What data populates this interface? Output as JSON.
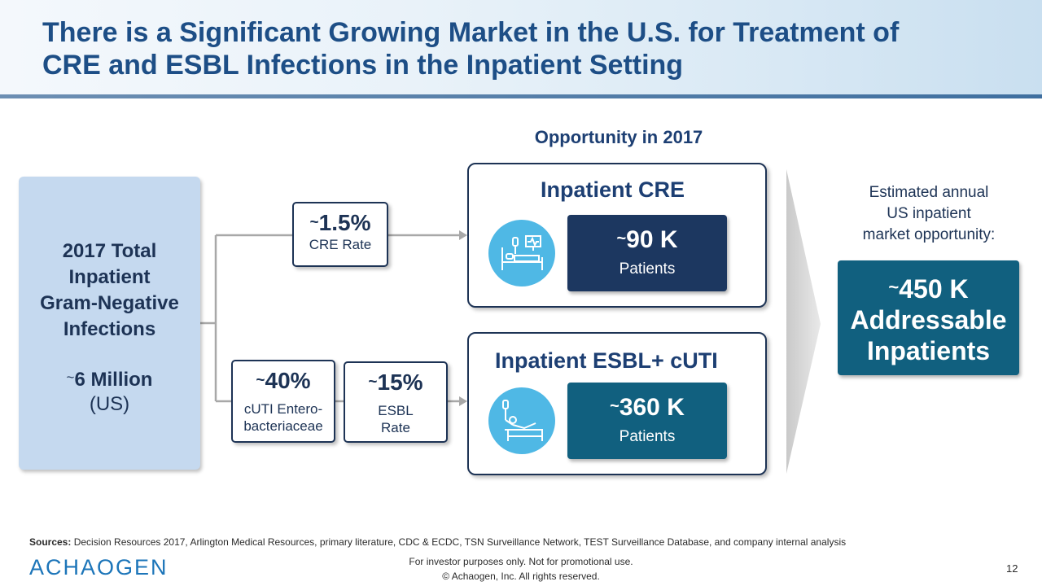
{
  "header": {
    "title_line1": "There is a Significant Growing Market in the U.S. for Treatment of",
    "title_line2": "CRE and ESBL Infections in the Inpatient Setting"
  },
  "subtitle": "Opportunity in 2017",
  "left_box": {
    "line1": "2017 Total",
    "line2": "Inpatient",
    "line3": "Gram-Negative",
    "line4": "Infections",
    "value_prefix": "~",
    "value": "6 Million",
    "region": "(US)"
  },
  "rates": {
    "cre": {
      "prefix": "~",
      "value": "1.5%",
      "label": "CRE Rate"
    },
    "cuti": {
      "prefix": "~",
      "value": "40%",
      "label_line1": "cUTI Entero-",
      "label_line2": "bacteriaceae"
    },
    "esbl": {
      "prefix": "~",
      "value": "15%",
      "label_line1": "ESBL",
      "label_line2": "Rate"
    }
  },
  "panels": {
    "cre": {
      "title": "Inpatient CRE",
      "value_prefix": "~",
      "value": "90 K",
      "label": "Patients",
      "icon": "hospital-bed-monitor-icon",
      "box_color": "#1c3760"
    },
    "esbl": {
      "title": "Inpatient ESBL+ cUTI",
      "value_prefix": "~",
      "value": "360 K",
      "label": "Patients",
      "icon": "patient-iv-bed-icon",
      "box_color": "#11607f"
    }
  },
  "estimate": {
    "line1": "Estimated annual",
    "line2": "US inpatient",
    "line3": "market opportunity:",
    "value_prefix": "~",
    "value": "450 K",
    "line_b": "Addressable",
    "line_c": "Inpatients"
  },
  "footer": {
    "sources_label": "Sources:",
    "sources_text": " Decision Resources 2017, Arlington Medical Resources, primary literature, CDC & ECDC, TSN Surveillance Network, TEST Surveillance Database, and company internal analysis",
    "logo": "ACHAOGEN",
    "disclaimer1": "For investor purposes only. Not for promotional use.",
    "disclaimer2": "© Achaogen, Inc. All rights reserved.",
    "page": "12"
  },
  "colors": {
    "title": "#1d4e86",
    "accent_light_blue": "#4fb8e5",
    "dark_navy": "#1c3760",
    "teal": "#11607f"
  }
}
